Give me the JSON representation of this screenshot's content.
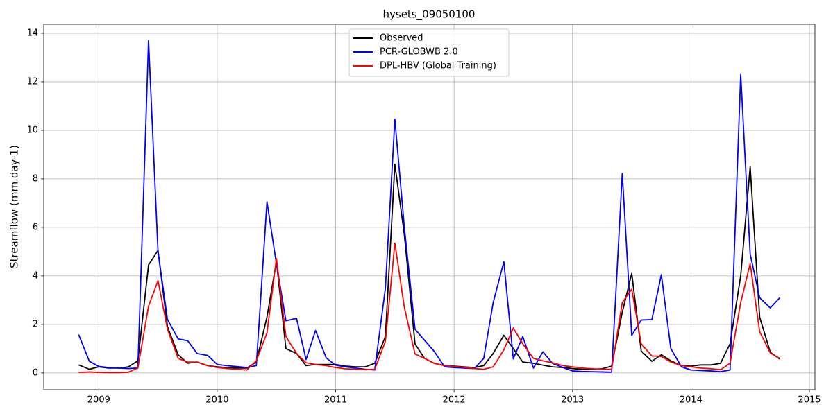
{
  "chart_data": {
    "type": "line",
    "title": "hysets_09050100",
    "y_label": "Streamflow (mm.day-1)",
    "x": [
      2008.83,
      2008.92,
      2009.0,
      2009.08,
      2009.17,
      2009.25,
      2009.33,
      2009.42,
      2009.5,
      2009.58,
      2009.67,
      2009.75,
      2009.83,
      2009.92,
      2010.0,
      2010.08,
      2010.17,
      2010.25,
      2010.33,
      2010.42,
      2010.5,
      2010.58,
      2010.67,
      2010.75,
      2010.83,
      2010.92,
      2011.0,
      2011.08,
      2011.17,
      2011.25,
      2011.33,
      2011.42,
      2011.5,
      2011.58,
      2011.67,
      2011.75,
      2011.83,
      2011.92,
      2012.0,
      2012.08,
      2012.17,
      2012.25,
      2012.33,
      2012.42,
      2012.5,
      2012.58,
      2012.67,
      2012.75,
      2012.83,
      2012.92,
      2013.0,
      2013.08,
      2013.17,
      2013.25,
      2013.33,
      2013.42,
      2013.5,
      2013.58,
      2013.67,
      2013.75,
      2013.83,
      2013.92,
      2014.0,
      2014.08,
      2014.17,
      2014.25,
      2014.33,
      2014.42,
      2014.5,
      2014.58,
      2014.67,
      2014.75
    ],
    "series": [
      {
        "name": "Observed",
        "color": "#000000",
        "values": [
          0.33,
          0.15,
          0.25,
          0.2,
          0.2,
          0.25,
          0.5,
          4.45,
          5.05,
          1.9,
          0.75,
          0.4,
          0.45,
          0.3,
          0.25,
          0.22,
          0.2,
          0.2,
          0.45,
          2.3,
          4.6,
          1.0,
          0.8,
          0.3,
          0.35,
          0.35,
          0.35,
          0.28,
          0.25,
          0.25,
          0.4,
          1.5,
          8.6,
          5.7,
          1.2,
          0.6,
          0.4,
          0.3,
          0.28,
          0.25,
          0.22,
          0.3,
          0.8,
          1.55,
          1.0,
          0.45,
          0.4,
          0.32,
          0.25,
          0.22,
          0.18,
          0.15,
          0.15,
          0.17,
          0.28,
          2.5,
          4.1,
          0.9,
          0.48,
          0.75,
          0.5,
          0.3,
          0.28,
          0.33,
          0.33,
          0.4,
          1.2,
          4.0,
          8.5,
          2.3,
          0.85,
          0.57
        ]
      },
      {
        "name": "PCR-GLOBWB 2.0",
        "color": "#0000ff",
        "values": [
          1.58,
          0.48,
          0.27,
          0.22,
          0.2,
          0.18,
          0.2,
          13.7,
          5.0,
          2.2,
          1.4,
          1.33,
          0.8,
          0.72,
          0.35,
          0.3,
          0.26,
          0.22,
          0.3,
          7.05,
          4.5,
          2.15,
          2.25,
          0.55,
          1.75,
          0.62,
          0.32,
          0.25,
          0.2,
          0.15,
          0.12,
          3.5,
          10.45,
          6.0,
          1.8,
          1.35,
          0.9,
          0.25,
          0.22,
          0.2,
          0.18,
          0.6,
          2.9,
          4.58,
          0.58,
          1.5,
          0.2,
          0.87,
          0.4,
          0.22,
          0.08,
          0.06,
          0.05,
          0.04,
          0.03,
          8.22,
          1.55,
          2.18,
          2.2,
          4.05,
          1.0,
          0.25,
          0.12,
          0.1,
          0.08,
          0.05,
          0.12,
          12.3,
          4.9,
          3.1,
          2.68,
          3.1
        ]
      },
      {
        "name": "DPL-HBV (Global Training)",
        "color": "#ff0000",
        "values": [
          0.02,
          0.04,
          0.02,
          0.01,
          0.01,
          0.03,
          0.2,
          2.75,
          3.8,
          1.8,
          0.6,
          0.45,
          0.45,
          0.3,
          0.22,
          0.18,
          0.15,
          0.12,
          0.5,
          1.65,
          4.72,
          1.5,
          0.8,
          0.42,
          0.35,
          0.3,
          0.22,
          0.17,
          0.15,
          0.13,
          0.15,
          1.3,
          5.35,
          2.7,
          0.78,
          0.6,
          0.4,
          0.3,
          0.27,
          0.23,
          0.18,
          0.15,
          0.25,
          0.95,
          1.85,
          1.2,
          0.6,
          0.5,
          0.42,
          0.3,
          0.25,
          0.2,
          0.17,
          0.15,
          0.15,
          2.9,
          3.45,
          1.2,
          0.7,
          0.68,
          0.45,
          0.3,
          0.25,
          0.2,
          0.17,
          0.13,
          0.4,
          2.9,
          4.5,
          1.7,
          0.82,
          0.6
        ]
      }
    ],
    "xlim": [
      2008.535,
      2015.047
    ],
    "xticks": [
      2009,
      2010,
      2011,
      2012,
      2013,
      2014,
      2015
    ],
    "ylim": [
      -0.69,
      14.37
    ],
    "yticks": [
      0,
      2,
      4,
      6,
      8,
      10,
      12,
      14
    ],
    "grid": true,
    "legend": "upper center"
  }
}
